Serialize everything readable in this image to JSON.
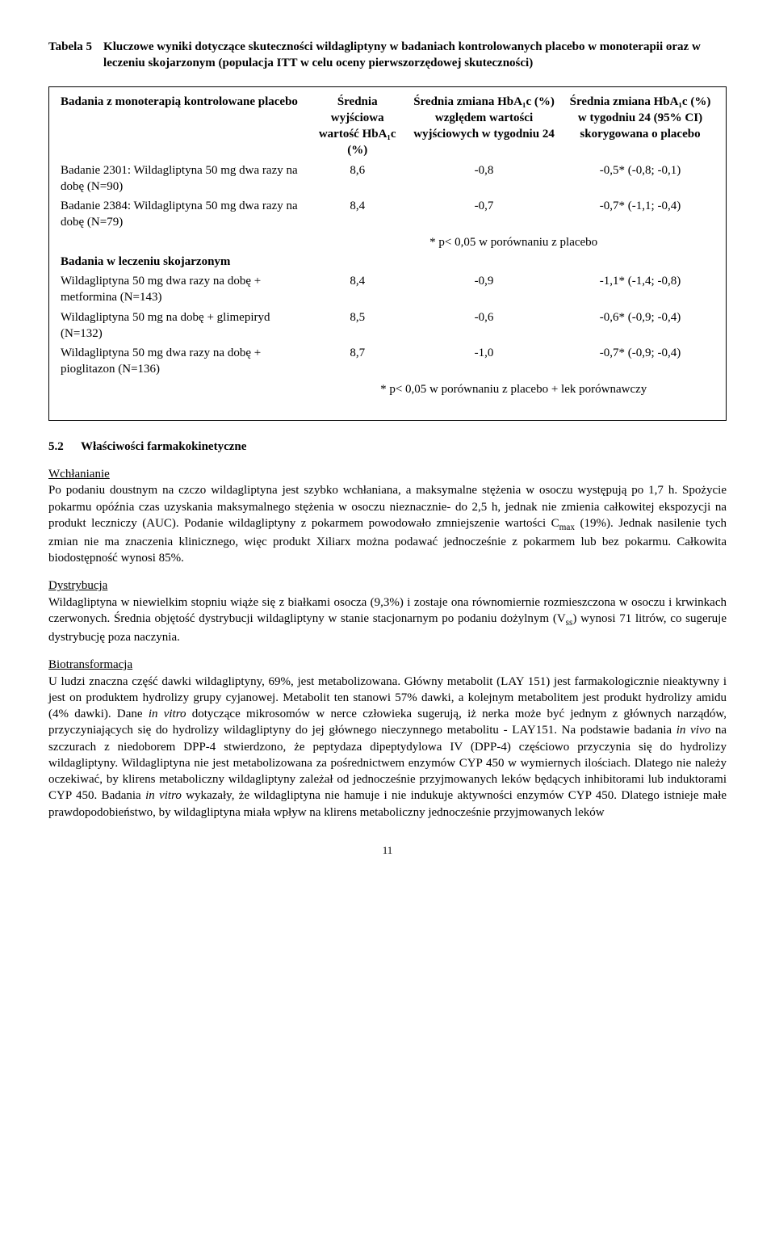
{
  "tabela": {
    "label": "Tabela 5",
    "title": "Kluczowe wyniki dotyczące skuteczności wildagliptyny w badaniach kontrolowanych placebo w monoterapii oraz w leczeniu skojarzonym (populacja ITT w celu oceny pierwszorzędowej skuteczności)"
  },
  "table": {
    "head": {
      "col1": "Badania z monoterapią kontrolowane placebo",
      "col2": "Średnia wyjściowa wartość HbA₁c (%)",
      "col3": "Średnia zmiana HbA₁c (%) względem wartości wyjściowych w tygodniu 24",
      "col4": "Średnia zmiana HbA₁c (%) w tygodniu 24 (95% CI) skorygowana o placebo"
    },
    "rows": [
      {
        "label": "Badanie 2301: Wildagliptyna 50 mg dwa razy na dobę (N=90)",
        "c2": "8,6",
        "c3": "-0,8",
        "c4": "-0,5* (-0,8; -0,1)"
      },
      {
        "label": "Badanie 2384: Wildagliptyna 50 mg dwa razy na dobę (N=79)",
        "c2": "8,4",
        "c3": "-0,7",
        "c4": "-0,7* (-1,1; -0,4)"
      }
    ],
    "footnote1": "* p< 0,05 w porównaniu z placebo",
    "section2": "Badania w leczeniu skojarzonym",
    "rows2": [
      {
        "label": "Wildagliptyna 50 mg dwa razy na dobę + metformina (N=143)",
        "c2": "8,4",
        "c3": "-0,9",
        "c4": "-1,1* (-1,4; -0,8)"
      },
      {
        "label": "Wildagliptyna 50 mg na dobę + glimepiryd (N=132)",
        "c2": "8,5",
        "c3": "-0,6",
        "c4": "-0,6* (-0,9; -0,4)"
      },
      {
        "label": "Wildagliptyna 50 mg dwa razy na dobę + pioglitazon (N=136)",
        "c2": "8,7",
        "c3": "-1,0",
        "c4": "-0,7* (-0,9; -0,4)"
      }
    ],
    "footnote2": "* p< 0,05 w porównaniu z placebo + lek porównawczy"
  },
  "sec52": {
    "num": "5.2",
    "title": "Właściwości farmakokinetyczne"
  },
  "p1": {
    "h": "Wchłanianie",
    "body_a": "Po podaniu doustnym na czczo wildagliptyna jest szybko wchłaniana, a maksymalne stężenia w osoczu występują po 1,7 h. Spożycie pokarmu opóźnia czas uzyskania maksymalnego stężenia w osoczu nieznacznie- do 2,5 h, jednak nie zmienia całkowitej ekspozycji na produkt leczniczy (AUC). Podanie wildagliptyny z pokarmem powodowało zmniejszenie wartości C",
    "sub": "max",
    "body_b": " (19%). Jednak nasilenie tych zmian nie ma znaczenia klinicznego, więc produkt Xiliarx można podawać jednocześnie z pokarmem lub bez pokarmu. Całkowita biodostępność wynosi 85%."
  },
  "p2": {
    "h": "Dystrybucja",
    "body_a": "Wildagliptyna w niewielkim stopniu wiąże się z białkami osocza (9,3%) i zostaje ona równomiernie rozmieszczona w osoczu i krwinkach czerwonych. Średnia objętość dystrybucji wildagliptyny w stanie stacjonarnym po podaniu dożylnym (V",
    "sub": "ss",
    "body_b": ") wynosi 71 litrów, co sugeruje dystrybucję poza naczynia."
  },
  "p3": {
    "h": "Biotransformacja",
    "body_a": "U ludzi znaczna część dawki wildagliptyny, 69%, jest metabolizowana. Główny metabolit (LAY 151) jest farmakologicznie nieaktywny i jest on produktem hydrolizy grupy cyjanowej. Metabolit ten stanowi 57% dawki, a kolejnym metabolitem jest produkt hydrolizy amidu (4% dawki). Dane ",
    "it1": "in vitro",
    "body_b": " dotyczące mikrosomów w nerce człowieka sugerują, iż nerka może być jednym z głównych narządów, przyczyniających się do hydrolizy wildagliptyny do jej głównego nieczynnego metabolitu - LAY151. Na podstawie badania ",
    "it2": "in vivo",
    "body_c": " na szczurach z niedoborem DPP-4 stwierdzono, że peptydaza dipeptydylowa IV (DPP-4) częściowo przyczynia się do hydrolizy wildagliptyny. Wildagliptyna nie jest metabolizowana za pośrednictwem enzymów CYP 450 w wymiernych ilościach. Dlatego nie należy oczekiwać, by klirens metaboliczny wildagliptyny zależał od jednocześnie przyjmowanych leków będących inhibitorami lub induktorami CYP 450. Badania ",
    "it3": "in vitro",
    "body_d": " wykazały, że wildagliptyna nie hamuje i nie indukuje aktywności enzymów CYP 450. Dlatego istnieje małe prawdopodobieństwo, by wildagliptyna miała wpływ na klirens metaboliczny jednocześnie przyjmowanych leków"
  },
  "pagenum": "11"
}
